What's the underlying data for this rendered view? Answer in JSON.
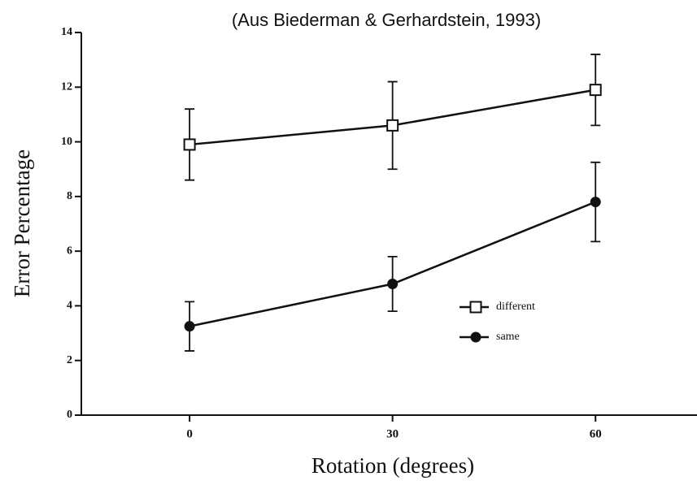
{
  "chart_data": {
    "type": "line",
    "title": "(Aus Biederman & Gerhardstein, 1993)",
    "xlabel": "Rotation (degrees)",
    "ylabel": "Error Percentage",
    "x": [
      0,
      30,
      60
    ],
    "series": [
      {
        "name": "different",
        "color": "#111111",
        "marker": "square-open",
        "values": [
          9.9,
          10.6,
          11.9
        ],
        "errors": [
          1.3,
          1.6,
          1.3
        ]
      },
      {
        "name": "same",
        "color": "#111111",
        "marker": "circle",
        "values": [
          3.25,
          4.8,
          7.8
        ],
        "errors": [
          0.9,
          1.0,
          1.45
        ]
      }
    ],
    "xlim": [
      -16,
      75
    ],
    "xticks": [
      0,
      30,
      60
    ],
    "ylim": [
      0,
      14
    ],
    "yticks": [
      0,
      2,
      4,
      6,
      8,
      10,
      12,
      14
    ],
    "grid": false,
    "legend": "lower right"
  }
}
